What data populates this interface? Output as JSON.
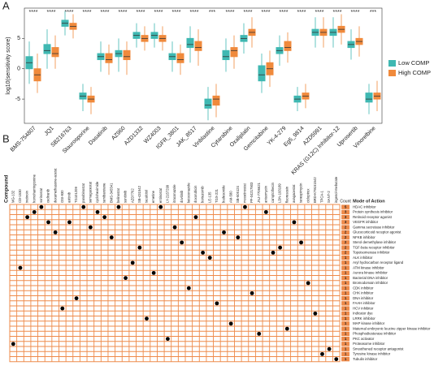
{
  "chart_data": [
    {
      "type": "boxplot",
      "label": "A",
      "ylabel": "log10(sensitivity score)",
      "categories": [
        "BMS-754807",
        "JQ1",
        "SB216763",
        "Staurosporine",
        "Dasatinib",
        "AZ960",
        "AZD1332",
        "WZ4003",
        "IGFR_3801",
        "JAK_8517",
        "Vinblastine",
        "Cytarabine",
        "Oxaliplatin",
        "Gemcitabine",
        "YK-4-279",
        "Eg5_9814",
        "AZD5991",
        "KRAS (G12C) Inhibitor-12",
        "Uprosertib",
        "Vinorelbine"
      ],
      "significance": [
        "****",
        "****",
        "****",
        "****",
        "****",
        "****",
        "****",
        "****",
        "****",
        "****",
        "***",
        "****",
        "****",
        "****",
        "****",
        "****",
        "****",
        "****",
        "****",
        "***"
      ],
      "series": [
        {
          "name": "Low COMP",
          "color": "#3fb8b2",
          "values": [
            [
              -2.5,
              0,
              1,
              2,
              4.5
            ],
            [
              0,
              2.5,
              3,
              4,
              6.5
            ],
            [
              5.5,
              7,
              7.5,
              8,
              9.5
            ],
            [
              -7,
              -5,
              -4.5,
              -4,
              -2.5
            ],
            [
              -0.5,
              1.5,
              2,
              2.5,
              4.5
            ],
            [
              -0.5,
              2,
              2.5,
              3,
              5
            ],
            [
              3.5,
              5,
              5.5,
              6,
              7.5
            ],
            [
              3.5,
              5,
              5.5,
              6,
              7.5
            ],
            [
              -0.5,
              1.5,
              2,
              2.5,
              4.5
            ],
            [
              1,
              3.5,
              4,
              5,
              7
            ],
            [
              -8.5,
              -6.5,
              -6,
              -5,
              -3
            ],
            [
              -0.5,
              1.5,
              2,
              3,
              5
            ],
            [
              2.5,
              4.5,
              5,
              5.5,
              7.5
            ],
            [
              -4,
              -2,
              -1,
              0.5,
              2.5
            ],
            [
              0.5,
              2.5,
              3,
              3.5,
              5.5
            ],
            [
              -7,
              -5.5,
              -5,
              -4.5,
              -3
            ],
            [
              3.5,
              5.5,
              6,
              6.5,
              8.5
            ],
            [
              3.5,
              5.5,
              6,
              6.5,
              8.5
            ],
            [
              1.5,
              3.5,
              4,
              4.5,
              6.5
            ],
            [
              -7.5,
              -5.5,
              -5,
              -4,
              -2.5
            ]
          ]
        },
        {
          "name": "High COMP",
          "color": "#f08a3c",
          "values": [
            [
              -4,
              -2,
              -1,
              0,
              2.5
            ],
            [
              0,
              2,
              2.5,
              3.5,
              5.5
            ],
            [
              5,
              6.5,
              7,
              7.5,
              9
            ],
            [
              -7.5,
              -5.5,
              -5,
              -4.5,
              -3
            ],
            [
              -1,
              1,
              1.5,
              2.5,
              4
            ],
            [
              -1,
              1.5,
              2,
              3,
              4.5
            ],
            [
              3,
              4.5,
              5,
              5.5,
              7
            ],
            [
              3,
              4.5,
              5,
              5.5,
              7
            ],
            [
              -1,
              1,
              1.5,
              2.5,
              4
            ],
            [
              0.5,
              3,
              3.5,
              4.5,
              6.5
            ],
            [
              -8,
              -6,
              -5,
              -4.5,
              -2.5
            ],
            [
              0,
              2,
              3,
              3.5,
              5.5
            ],
            [
              3.5,
              5.5,
              6,
              6.5,
              8.5
            ],
            [
              -3,
              -1,
              0,
              1,
              3
            ],
            [
              1,
              3,
              3.5,
              4.5,
              6
            ],
            [
              -6.5,
              -5,
              -4.5,
              -4,
              -2.5
            ],
            [
              3.5,
              5.5,
              6,
              6.5,
              8.5
            ],
            [
              4,
              6,
              6.5,
              7,
              9
            ],
            [
              2,
              4,
              4.5,
              5,
              7
            ],
            [
              -7,
              -5,
              -4.5,
              -4,
              -2
            ]
          ]
        }
      ],
      "ylim": [
        -9,
        10
      ],
      "yticks": [
        -5,
        0,
        5
      ],
      "legend": "right"
    },
    {
      "type": "dotmatrix",
      "label": "B",
      "column_title": "Compound",
      "count_title": "Count",
      "row_title": "Mode of Action",
      "color": "#ee8a4a",
      "columns": [
        "MG-132",
        "CD-1530",
        "tretinoin",
        "homoharringtonine",
        "vorinostat",
        "cediranib",
        "dexamethasone-acetat",
        "OSI-930",
        "axitinib",
        "TG101209",
        "panobinostat",
        "semagacestat",
        "cycloheximide",
        "tamibarotene",
        "BMS-345541",
        "belinostat",
        "sunitinib",
        "AZD7762",
        "SB-431542",
        "tacalcitol",
        "emetine",
        "entinostat",
        "LY-2157299",
        "itraconazole",
        "dovitinib",
        "ketoconazole",
        "doxorubicin",
        "bortezomib",
        "LE-135",
        "TGX-221",
        "budesonide",
        "AM-580",
        "SB-505124",
        "mocetinostat",
        "PF-04217903",
        "JNJ-7706621",
        "anisomycin",
        "camptothecin",
        "LDN-193189",
        "fluorescein",
        "avagacestat",
        "tanespimycin",
        "ciclopirox",
        "BRD-K79151542",
        "TPCA-1",
        "SANT-2",
        "ingenol-mebutate"
      ],
      "rows": [
        "HDAC inhibitor",
        "Protein synthesis inhibitor",
        "Retinoid receptor agonist",
        "VEGFR inhibitor",
        "Gamma secretase inhibitor",
        "Glucocorticoid receptor agonist",
        "NFKB inhibitor",
        "Sterol demethylase inhibitor",
        "TGF-beta receptor inhibitor",
        "Topoisomerase inhibitor",
        "ALK inhibitor",
        "Aryl hydrocarbon receptor ligand",
        "ATM kinase inhibitor",
        "Aurora kinase inhibitor",
        "Bacterial DNA inhibitor",
        "Bromodomain inhibitor",
        "CDK inhibitor",
        "CHK inhibitor",
        "DNA inhibitor",
        "FAAH inhibitor",
        "HCV inhibitor",
        "Indicator dye",
        "LRRK inhibitor",
        "MAP kinase inhibitor",
        "Maternal embryonic leucine zipper kinase inhibitor",
        "Phosphodiesterase inhibitor",
        "PKC activator",
        "Proteasome inhibitor",
        "Smoothened receptor antagonist",
        "Tyrosine kinase inhibitor",
        "Tubulin inhibitor"
      ],
      "counts": [
        5,
        3,
        3,
        3,
        2,
        2,
        2,
        2,
        2,
        2,
        1,
        1,
        1,
        1,
        1,
        1,
        1,
        1,
        1,
        1,
        1,
        1,
        1,
        1,
        1,
        1,
        1,
        1,
        1,
        1,
        1
      ],
      "cells": [
        27,
        12,
        2,
        1,
        0,
        3,
        5,
        20,
        3,
        18,
        0,
        4,
        1,
        2,
        6,
        0,
        14,
        11,
        8,
        22,
        13,
        0,
        26,
        4,
        7,
        16,
        2,
        9,
        10,
        19,
        5,
        23,
        6,
        0,
        17,
        25,
        1,
        9,
        8,
        24,
        3,
        7,
        15,
        21,
        29,
        28,
        30
      ]
    }
  ]
}
